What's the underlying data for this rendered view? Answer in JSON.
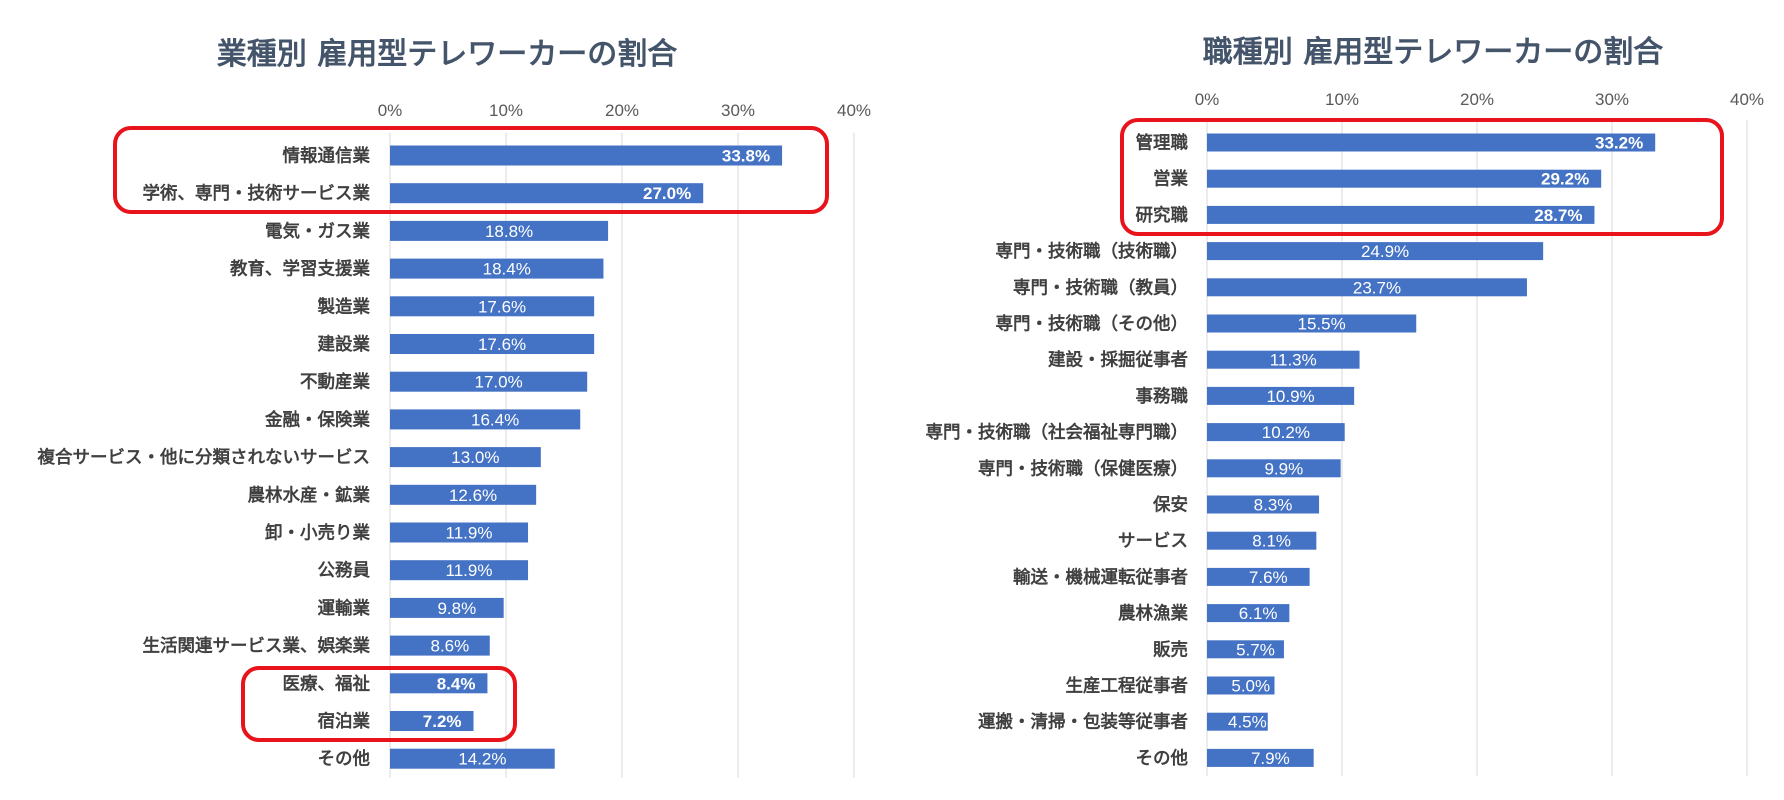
{
  "colors": {
    "bar": "#4472c4",
    "highlight": "#e8131b",
    "title": "#44546a"
  },
  "chart_data": [
    {
      "type": "bar",
      "orientation": "horizontal",
      "title": "業種別 雇用型テレワーカーの割合",
      "xlim": [
        0,
        40
      ],
      "ticks": [
        "0%",
        "10%",
        "20%",
        "30%",
        "40%"
      ],
      "grid": true,
      "categories": [
        "情報通信業",
        "学術、専門・技術サービス業",
        "電気・ガス業",
        "教育、学習支援業",
        "製造業",
        "建設業",
        "不動産業",
        "金融・保険業",
        "複合サービス・他に分類されないサービス",
        "農林水産・鉱業",
        "卸・小売り業",
        "公務員",
        "運輸業",
        "生活関連サービス業、娯楽業",
        "医療、福祉",
        "宿泊業",
        "その他"
      ],
      "values": [
        33.8,
        27.0,
        18.8,
        18.4,
        17.6,
        17.6,
        17.0,
        16.4,
        13.0,
        12.6,
        11.9,
        11.9,
        9.8,
        8.6,
        8.4,
        7.2,
        14.2
      ],
      "labels": [
        "33.8%",
        "27.0%",
        "18.8%",
        "18.4%",
        "17.6%",
        "17.6%",
        "17.0%",
        "16.4%",
        "13.0%",
        "12.6%",
        "11.9%",
        "11.9%",
        "9.8%",
        "8.6%",
        "8.4%",
        "7.2%",
        "14.2%"
      ],
      "highlighted": [
        [
          0,
          1
        ],
        [
          14,
          15
        ]
      ]
    },
    {
      "type": "bar",
      "orientation": "horizontal",
      "title": "職種別 雇用型テレワーカーの割合",
      "xlim": [
        0,
        40
      ],
      "ticks": [
        "0%",
        "10%",
        "20%",
        "30%",
        "40%"
      ],
      "grid": true,
      "categories": [
        "管理職",
        "営業",
        "研究職",
        "専門・技術職（技術職）",
        "専門・技術職（教員）",
        "専門・技術職（その他）",
        "建設・採掘従事者",
        "事務職",
        "専門・技術職（社会福祉専門職）",
        "専門・技術職（保健医療）",
        "保安",
        "サービス",
        "輸送・機械運転従事者",
        "農林漁業",
        "販売",
        "生産工程従事者",
        "運搬・清掃・包装等従事者",
        "その他"
      ],
      "values": [
        33.2,
        29.2,
        28.7,
        24.9,
        23.7,
        15.5,
        11.3,
        10.9,
        10.2,
        9.9,
        8.3,
        8.1,
        7.6,
        6.1,
        5.7,
        5.0,
        4.5,
        7.9
      ],
      "labels": [
        "33.2%",
        "29.2%",
        "28.7%",
        "24.9%",
        "23.7%",
        "15.5%",
        "11.3%",
        "10.9%",
        "10.2%",
        "9.9%",
        "8.3%",
        "8.1%",
        "7.6%",
        "6.1%",
        "5.7%",
        "5.0%",
        "4.5%",
        "7.9%"
      ],
      "highlighted": [
        [
          0,
          2
        ]
      ]
    }
  ]
}
